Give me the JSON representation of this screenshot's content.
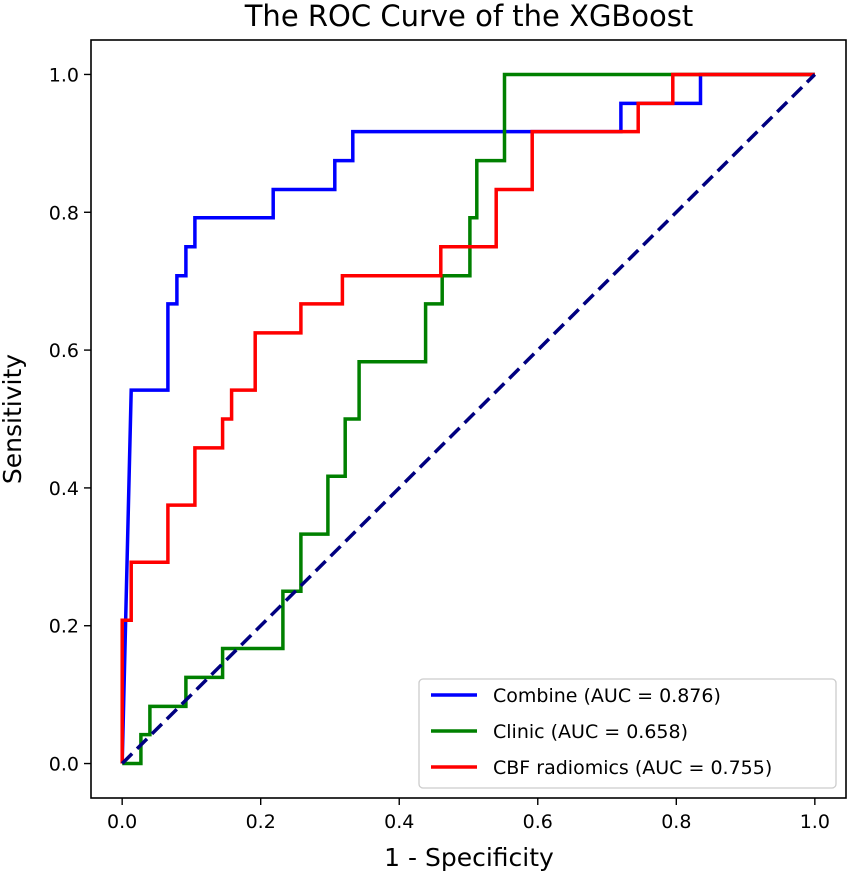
{
  "chart_data": {
    "type": "line",
    "title": "The ROC Curve of the XGBoost",
    "xlabel": "1 - Specificity",
    "ylabel": "Sensitivity",
    "xlim": [
      -0.045,
      1.045
    ],
    "ylim": [
      -0.05,
      1.05
    ],
    "xticks": [
      "0.0",
      "0.2",
      "0.4",
      "0.6",
      "0.8",
      "1.0"
    ],
    "yticks": [
      "0.0",
      "0.2",
      "0.4",
      "0.6",
      "0.8",
      "1.0"
    ],
    "grid": false,
    "legend_position": "lower-right",
    "series": [
      {
        "name": "Combine (AUC = 0.876)",
        "color": "#0000ff",
        "x": [
          0,
          0.013,
          0.013,
          0.066,
          0.066,
          0.079,
          0.079,
          0.092,
          0.092,
          0.105,
          0.105,
          0.218,
          0.218,
          0.307,
          0.307,
          0.333,
          0.333,
          0.72,
          0.72,
          0.8,
          0.8,
          0.835,
          0.835,
          1.0
        ],
        "y": [
          0,
          0.542,
          0.542,
          0.542,
          0.667,
          0.667,
          0.708,
          0.708,
          0.75,
          0.75,
          0.792,
          0.792,
          0.833,
          0.833,
          0.875,
          0.875,
          0.917,
          0.917,
          0.958,
          0.958,
          0.958,
          0.958,
          1.0,
          1.0
        ]
      },
      {
        "name": "Clinic (AUC = 0.658)",
        "color": "#008000",
        "x": [
          0,
          0.027,
          0.027,
          0.04,
          0.04,
          0.092,
          0.092,
          0.145,
          0.145,
          0.232,
          0.232,
          0.258,
          0.258,
          0.297,
          0.297,
          0.322,
          0.322,
          0.342,
          0.342,
          0.438,
          0.438,
          0.462,
          0.462,
          0.502,
          0.502,
          0.512,
          0.512,
          0.552,
          0.552,
          1.0
        ],
        "y": [
          0,
          0,
          0.042,
          0.042,
          0.083,
          0.083,
          0.125,
          0.125,
          0.167,
          0.167,
          0.25,
          0.25,
          0.333,
          0.333,
          0.417,
          0.417,
          0.5,
          0.5,
          0.583,
          0.583,
          0.667,
          0.667,
          0.708,
          0.708,
          0.792,
          0.792,
          0.875,
          0.875,
          1.0,
          1.0
        ]
      },
      {
        "name": "CBF radiomics (AUC = 0.755)",
        "color": "#ff0000",
        "x": [
          0,
          0,
          0.013,
          0.013,
          0.066,
          0.066,
          0.105,
          0.105,
          0.145,
          0.145,
          0.158,
          0.158,
          0.192,
          0.192,
          0.258,
          0.258,
          0.318,
          0.318,
          0.46,
          0.46,
          0.54,
          0.54,
          0.592,
          0.592,
          0.745,
          0.745,
          0.795,
          0.795,
          1.0
        ],
        "y": [
          0,
          0.208,
          0.208,
          0.292,
          0.292,
          0.375,
          0.375,
          0.458,
          0.458,
          0.5,
          0.5,
          0.542,
          0.542,
          0.625,
          0.625,
          0.667,
          0.667,
          0.708,
          0.708,
          0.75,
          0.75,
          0.833,
          0.833,
          0.917,
          0.917,
          0.958,
          0.958,
          1.0,
          1.0
        ]
      }
    ],
    "reference_line": {
      "x": [
        0,
        1
      ],
      "y": [
        0,
        1
      ],
      "color": "#000080",
      "style": "dashed"
    }
  }
}
